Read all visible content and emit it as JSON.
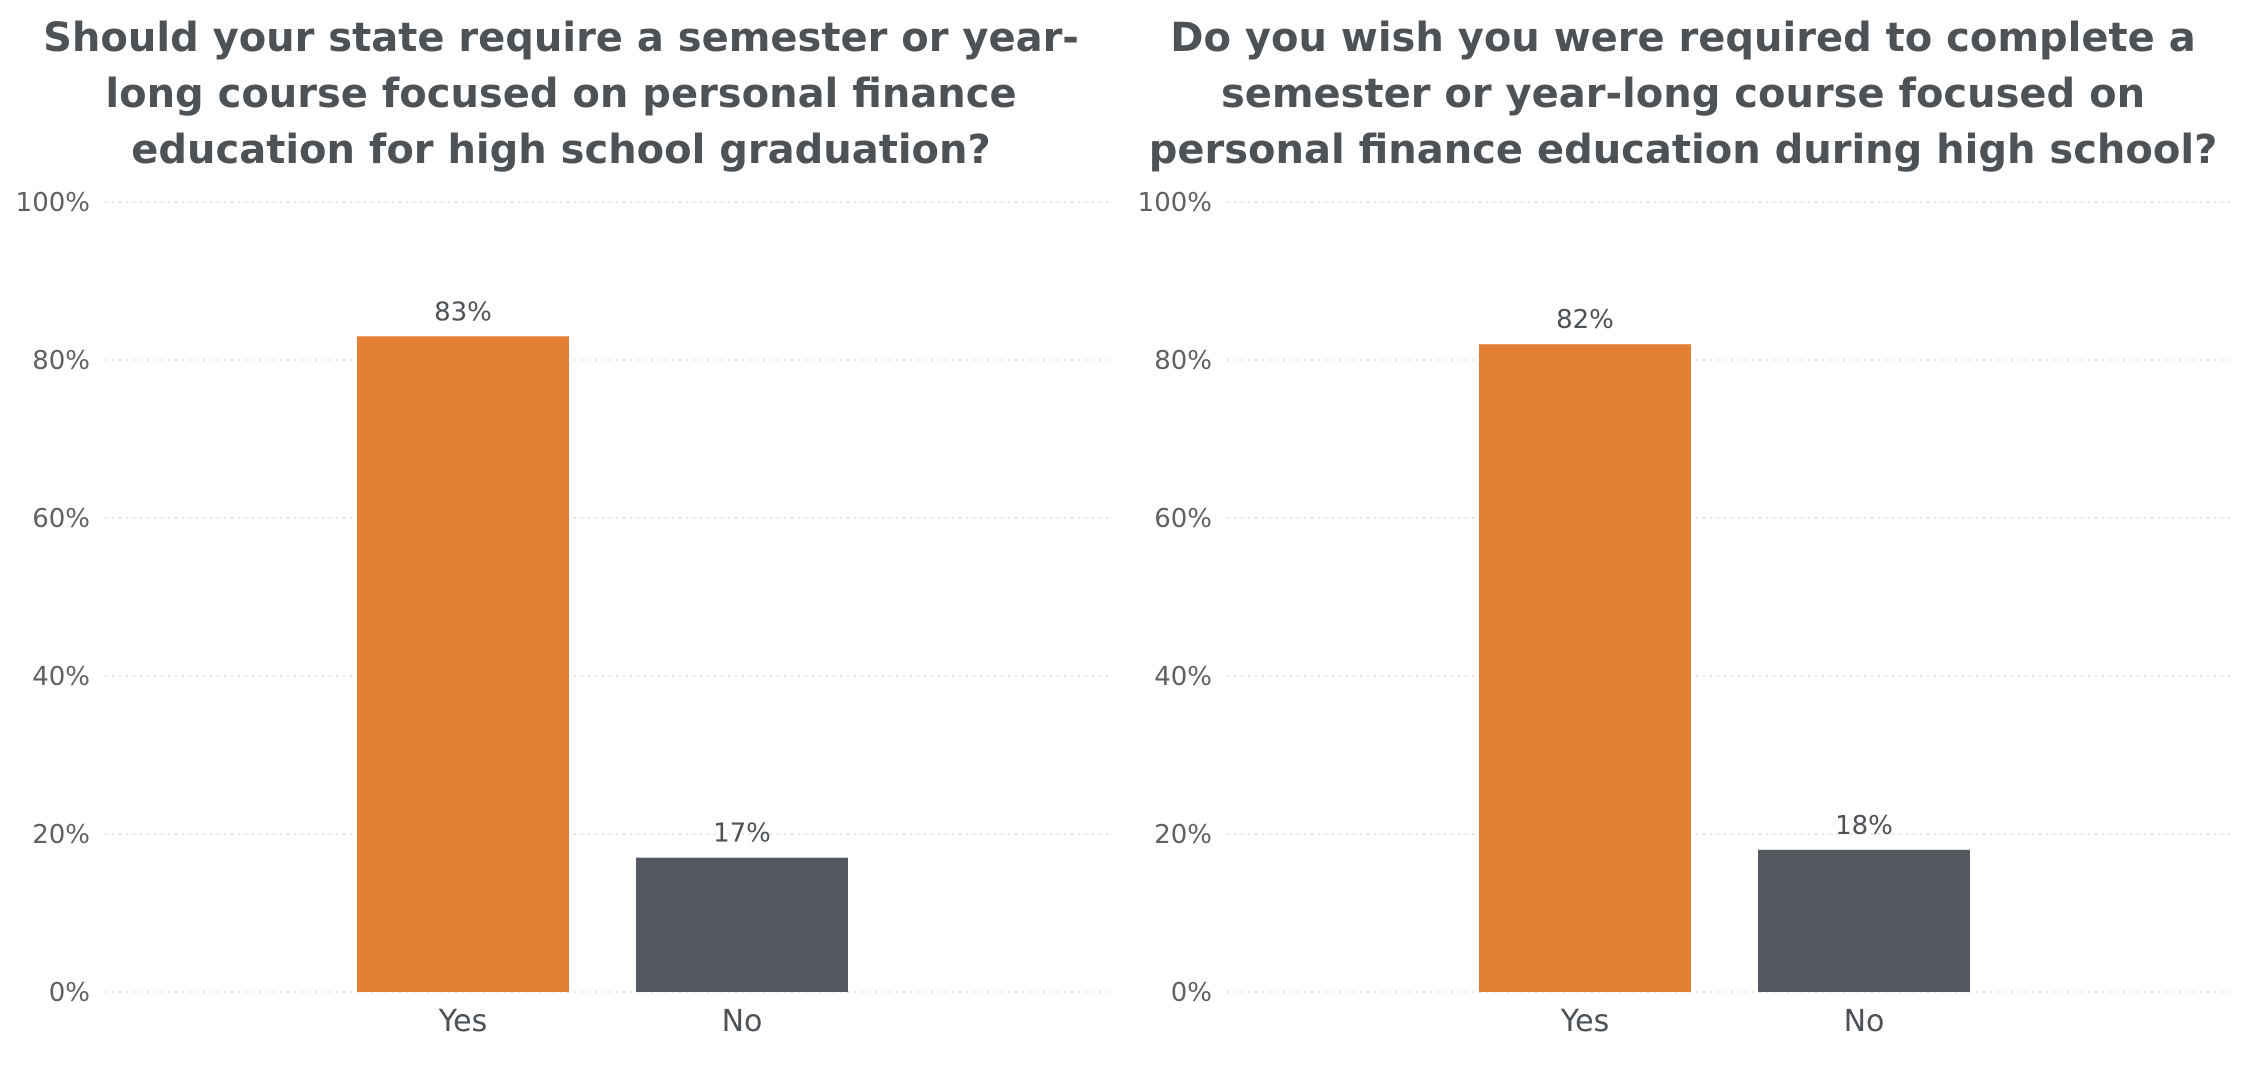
{
  "colors": {
    "yes": "#e38035",
    "no": "#545961",
    "title": "#4d5257",
    "grid": "#dddddd"
  },
  "chart_data": [
    {
      "type": "bar",
      "title": "Should your state require a semester or year-long course focused on personal finance education for high school graduation?",
      "categories": [
        "Yes",
        "No"
      ],
      "values": [
        83,
        17
      ],
      "value_labels": [
        "83%",
        "17%"
      ],
      "ylim": [
        0,
        100
      ],
      "yticks": [
        0,
        20,
        40,
        60,
        80,
        100
      ],
      "ytick_labels": [
        "0%",
        "20%",
        "40%",
        "60%",
        "80%",
        "100%"
      ],
      "grid": true,
      "xlabel": "",
      "ylabel": ""
    },
    {
      "type": "bar",
      "title": "Do you wish you were required to complete a semester or year-long course focused on personal finance education during high school?",
      "categories": [
        "Yes",
        "No"
      ],
      "values": [
        82,
        18
      ],
      "value_labels": [
        "82%",
        "18%"
      ],
      "ylim": [
        0,
        100
      ],
      "yticks": [
        0,
        20,
        40,
        60,
        80,
        100
      ],
      "ytick_labels": [
        "0%",
        "20%",
        "40%",
        "60%",
        "80%",
        "100%"
      ],
      "grid": true,
      "xlabel": "",
      "ylabel": ""
    }
  ]
}
